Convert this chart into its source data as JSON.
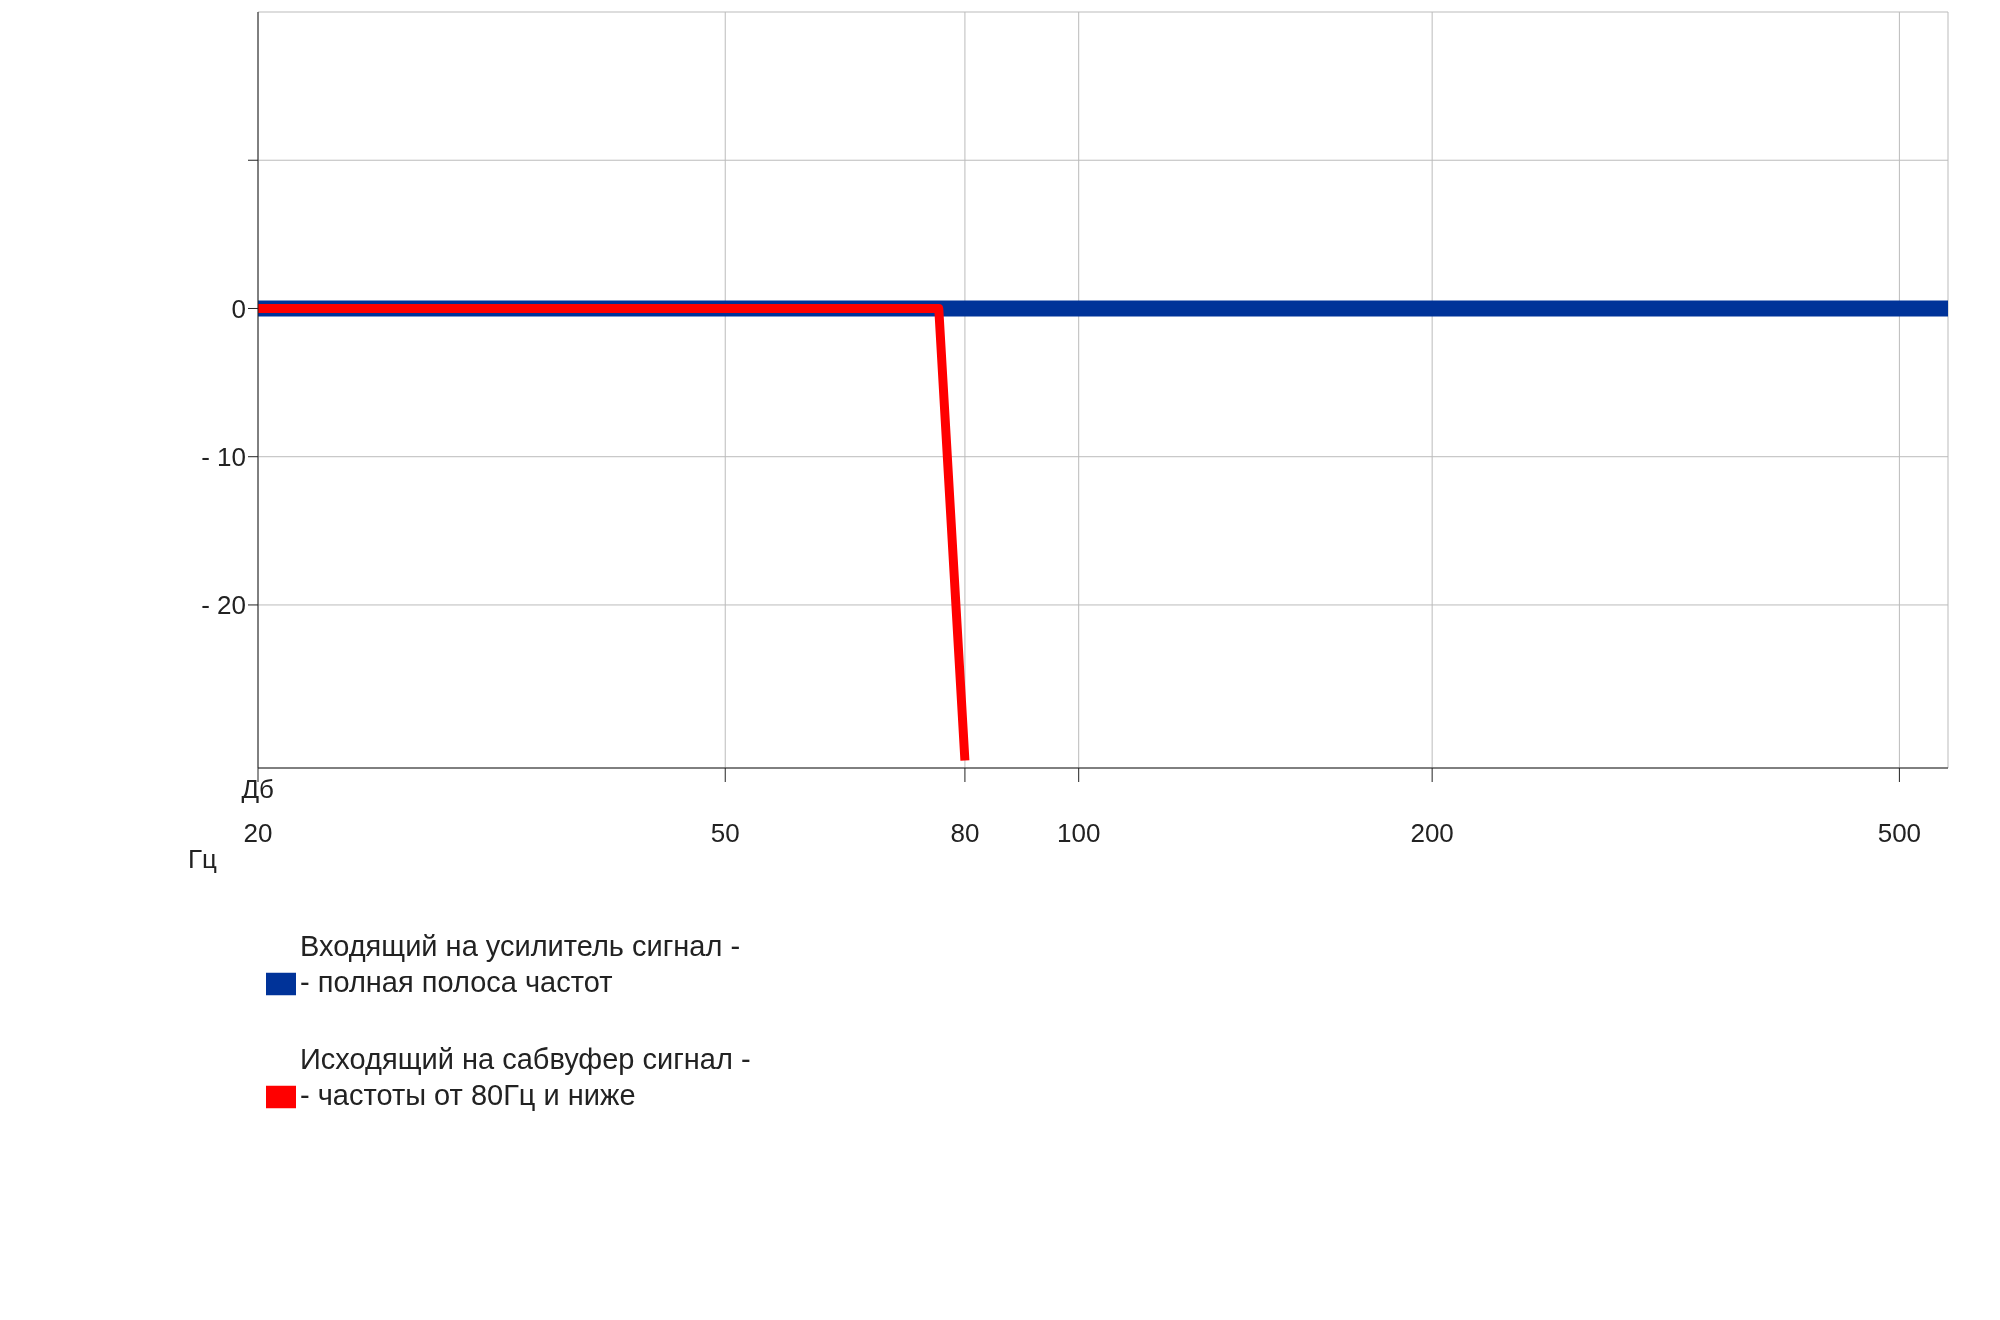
{
  "chart_data": {
    "type": "line",
    "xlabel": "Гц",
    "ylabel": "Дб",
    "log": "x",
    "xlim": [
      20,
      550
    ],
    "xticks": [
      20,
      50,
      80,
      100,
      200,
      500
    ],
    "ylim": [
      -31,
      20
    ],
    "yticks": [
      {
        "value": 10,
        "label": null
      },
      0,
      {
        "value": -10,
        "label": "- 10"
      },
      {
        "value": -20,
        "label": "- 20"
      }
    ],
    "grid": true,
    "legend": "bottom",
    "series": [
      {
        "name": "Входящий на усилитель сигнал -\n- полная полоса частот",
        "color": "#003399",
        "x": [
          20,
          550
        ],
        "values": [
          0,
          0
        ]
      },
      {
        "name": "Исходящий на сабвуфер сигнал -\n- частоты от 80Гц и ниже",
        "color": "#ff0000",
        "x": [
          20,
          76,
          80
        ],
        "values": [
          0,
          0,
          -30.5
        ]
      }
    ]
  }
}
